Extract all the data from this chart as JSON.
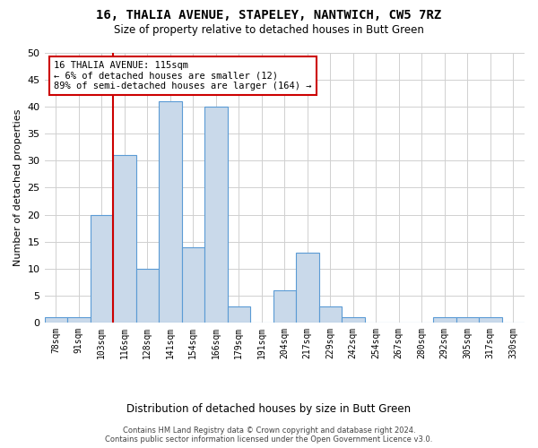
{
  "title": "16, THALIA AVENUE, STAPELEY, NANTWICH, CW5 7RZ",
  "subtitle": "Size of property relative to detached houses in Butt Green",
  "xlabel": "Distribution of detached houses by size in Butt Green",
  "ylabel": "Number of detached properties",
  "bar_labels": [
    "78sqm",
    "91sqm",
    "103sqm",
    "116sqm",
    "128sqm",
    "141sqm",
    "154sqm",
    "166sqm",
    "179sqm",
    "191sqm",
    "204sqm",
    "217sqm",
    "229sqm",
    "242sqm",
    "254sqm",
    "267sqm",
    "280sqm",
    "292sqm",
    "305sqm",
    "317sqm",
    "330sqm"
  ],
  "bar_values": [
    1,
    1,
    20,
    31,
    10,
    41,
    14,
    40,
    3,
    0,
    6,
    13,
    3,
    1,
    0,
    0,
    0,
    1,
    1,
    1,
    0
  ],
  "bar_color": "#c9d9ea",
  "bar_edge_color": "#5b9bd5",
  "vline_x_index": 3,
  "vline_color": "#cc0000",
  "annotation_text": "16 THALIA AVENUE: 115sqm\n← 6% of detached houses are smaller (12)\n89% of semi-detached houses are larger (164) →",
  "annotation_box_color": "#ffffff",
  "annotation_box_edge": "#cc0000",
  "ylim": [
    0,
    50
  ],
  "yticks": [
    0,
    5,
    10,
    15,
    20,
    25,
    30,
    35,
    40,
    45,
    50
  ],
  "footer_text": "Contains HM Land Registry data © Crown copyright and database right 2024.\nContains public sector information licensed under the Open Government Licence v3.0.",
  "bg_color": "#ffffff",
  "grid_color": "#d0d0d0"
}
